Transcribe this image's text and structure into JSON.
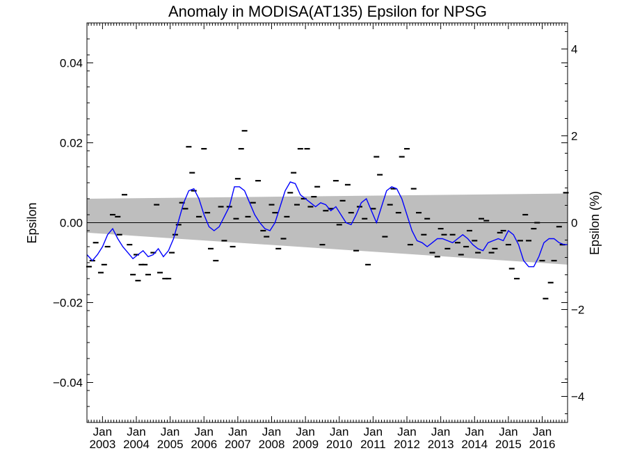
{
  "chart_data": {
    "type": "line",
    "title": "Anomaly in MODISA(AT135) Epsilon for NPSG",
    "ylabel": "Epsilon",
    "ylabel_right": "Epsilon (%)",
    "xlabel": "",
    "xlim": [
      2002.54,
      2016.75
    ],
    "ylim": [
      -0.05,
      0.05
    ],
    "yticks": [
      -0.04,
      -0.02,
      0.0,
      0.02,
      0.04
    ],
    "yticklabels": [
      "−0.04",
      "−0.02",
      "0.00",
      "0.02",
      "0.04"
    ],
    "right_ylim": [
      -4.6,
      4.6
    ],
    "right_yticks": [
      -4,
      -2,
      0,
      2,
      4
    ],
    "right_yticklabels": [
      "−4",
      "−2",
      "0",
      "2",
      "4"
    ],
    "xtick_years": [
      2003,
      2004,
      2005,
      2006,
      2007,
      2008,
      2009,
      2010,
      2011,
      2012,
      2013,
      2014,
      2015,
      2016
    ],
    "xtick_month_label": "Jan",
    "grid": false,
    "zero_line": 0.0,
    "colors": {
      "series": "#0000ff",
      "marker": "#000000",
      "band": "#bebebe"
    },
    "confidence_band": {
      "x": [
        2002.54,
        2016.75
      ],
      "upper": [
        0.006,
        0.0073
      ],
      "lower": [
        -0.0025,
        -0.0105
      ]
    },
    "series": [
      {
        "style": "line",
        "x": [
          2002.54,
          2002.7,
          2002.85,
          2003.0,
          2003.15,
          2003.3,
          2003.45,
          2003.6,
          2003.75,
          2003.9,
          2004.05,
          2004.2,
          2004.35,
          2004.5,
          2004.65,
          2004.8,
          2004.95,
          2005.1,
          2005.25,
          2005.4,
          2005.55,
          2005.7,
          2005.85,
          2006.0,
          2006.15,
          2006.3,
          2006.45,
          2006.6,
          2006.75,
          2006.9,
          2007.05,
          2007.2,
          2007.35,
          2007.5,
          2007.65,
          2007.8,
          2007.95,
          2008.1,
          2008.25,
          2008.4,
          2008.55,
          2008.7,
          2008.85,
          2009.0,
          2009.15,
          2009.3,
          2009.45,
          2009.6,
          2009.75,
          2009.9,
          2010.05,
          2010.2,
          2010.35,
          2010.5,
          2010.65,
          2010.8,
          2010.95,
          2011.1,
          2011.25,
          2011.4,
          2011.55,
          2011.7,
          2011.85,
          2012.0,
          2012.15,
          2012.3,
          2012.45,
          2012.6,
          2012.75,
          2012.9,
          2013.05,
          2013.2,
          2013.35,
          2013.5,
          2013.65,
          2013.8,
          2013.95,
          2014.1,
          2014.25,
          2014.4,
          2014.55,
          2014.7,
          2014.85,
          2015.0,
          2015.15,
          2015.3,
          2015.45,
          2015.6,
          2015.75,
          2015.9,
          2016.05,
          2016.2,
          2016.35,
          2016.5,
          2016.65,
          2016.75
        ],
        "y": [
          -0.008,
          -0.0095,
          -0.008,
          -0.006,
          -0.003,
          -0.0015,
          -0.004,
          -0.006,
          -0.0075,
          -0.009,
          -0.008,
          -0.007,
          -0.0085,
          -0.008,
          -0.0065,
          -0.0085,
          -0.007,
          -0.004,
          0.0005,
          0.005,
          0.008,
          0.0085,
          0.006,
          0.002,
          -0.001,
          -0.002,
          -0.001,
          0.0015,
          0.004,
          0.009,
          0.009,
          0.008,
          0.005,
          0.002,
          0.0,
          -0.0015,
          -0.002,
          0.0,
          0.004,
          0.008,
          0.0102,
          0.0098,
          0.007,
          0.006,
          0.005,
          0.004,
          0.005,
          0.0045,
          0.003,
          0.004,
          0.002,
          0.0,
          -0.0005,
          0.002,
          0.005,
          0.006,
          0.003,
          0.0,
          0.004,
          0.008,
          0.009,
          0.0085,
          0.006,
          0.002,
          -0.002,
          -0.0045,
          -0.005,
          -0.006,
          -0.005,
          -0.004,
          -0.004,
          -0.0045,
          -0.005,
          -0.004,
          -0.003,
          -0.004,
          -0.0055,
          -0.0065,
          -0.007,
          -0.005,
          -0.0045,
          -0.004,
          -0.0045,
          -0.002,
          -0.003,
          -0.0055,
          -0.0095,
          -0.011,
          -0.011,
          -0.0085,
          -0.005,
          -0.004,
          -0.004,
          -0.005,
          -0.0055,
          -0.0055
        ]
      },
      {
        "style": "dash-marker",
        "x": [
          2002.6,
          2002.7,
          2002.8,
          2002.95,
          2003.05,
          2003.15,
          2003.3,
          2003.45,
          2003.5,
          2003.65,
          2003.8,
          2003.9,
          2004.0,
          2004.05,
          2004.15,
          2004.25,
          2004.35,
          2004.5,
          2004.6,
          2004.7,
          2004.85,
          2004.95,
          2005.05,
          2005.15,
          2005.25,
          2005.35,
          2005.45,
          2005.55,
          2005.65,
          2005.7,
          2005.85,
          2006.0,
          2006.1,
          2006.2,
          2006.35,
          2006.5,
          2006.6,
          2006.75,
          2006.85,
          2006.95,
          2007.0,
          2007.1,
          2007.2,
          2007.3,
          2007.45,
          2007.6,
          2007.75,
          2007.85,
          2008.0,
          2008.1,
          2008.2,
          2008.35,
          2008.45,
          2008.55,
          2008.65,
          2008.75,
          2008.85,
          2008.95,
          2009.05,
          2009.15,
          2009.25,
          2009.35,
          2009.5,
          2009.6,
          2009.75,
          2009.9,
          2010.0,
          2010.1,
          2010.25,
          2010.35,
          2010.5,
          2010.6,
          2010.75,
          2010.85,
          2011.0,
          2011.1,
          2011.2,
          2011.35,
          2011.5,
          2011.6,
          2011.75,
          2011.85,
          2012.0,
          2012.1,
          2012.2,
          2012.35,
          2012.5,
          2012.6,
          2012.75,
          2012.9,
          2013.0,
          2013.1,
          2013.2,
          2013.35,
          2013.5,
          2013.6,
          2013.75,
          2013.85,
          2014.0,
          2014.1,
          2014.2,
          2014.35,
          2014.5,
          2014.6,
          2014.75,
          2014.85,
          2015.0,
          2015.1,
          2015.25,
          2015.35,
          2015.5,
          2015.6,
          2015.75,
          2015.85,
          2016.0,
          2016.1,
          2016.25,
          2016.35,
          2016.5,
          2016.6,
          2016.7
        ],
        "y": [
          -0.011,
          -0.0095,
          -0.005,
          -0.0125,
          -0.0105,
          -0.006,
          0.002,
          0.0015,
          -0.003,
          0.007,
          -0.0055,
          -0.013,
          -0.008,
          -0.0145,
          -0.0105,
          -0.0105,
          -0.013,
          -0.0075,
          0.0045,
          -0.0125,
          -0.014,
          -0.014,
          -0.0075,
          -0.003,
          -0.0005,
          0.005,
          0.0035,
          0.019,
          0.0125,
          0.008,
          0.0015,
          0.0185,
          0.0025,
          -0.0065,
          -0.0095,
          0.004,
          -0.0045,
          0.004,
          -0.006,
          0.001,
          0.011,
          0.0185,
          0.023,
          0.0015,
          0.005,
          0.0105,
          -0.002,
          -0.0035,
          0.0045,
          0.0025,
          -0.0065,
          -0.004,
          0.0015,
          0.0075,
          0.0125,
          0.0045,
          0.0185,
          0.006,
          0.0185,
          0.004,
          0.0065,
          0.009,
          -0.0055,
          0.003,
          0.0035,
          0.0105,
          -0.0005,
          0.0055,
          0.0095,
          0.0025,
          -0.007,
          0.004,
          0.001,
          -0.0105,
          0.0035,
          0.0165,
          0.012,
          -0.0035,
          0.0045,
          0.0085,
          0.0025,
          0.0165,
          0.0185,
          -0.0055,
          0.0085,
          0.0025,
          -0.003,
          0.001,
          -0.0075,
          -0.0085,
          -0.0015,
          -0.003,
          -0.0065,
          -0.003,
          -0.005,
          -0.008,
          -0.006,
          -0.002,
          -0.0045,
          -0.0075,
          0.001,
          0.0005,
          -0.0075,
          -0.0065,
          -0.0025,
          -0.002,
          -0.0055,
          -0.0115,
          -0.014,
          -0.0045,
          0.002,
          -0.0045,
          -0.0015,
          0.0,
          -0.0095,
          -0.019,
          -0.015,
          -0.0095,
          -0.001,
          -0.0055,
          0.0075
        ]
      }
    ]
  }
}
